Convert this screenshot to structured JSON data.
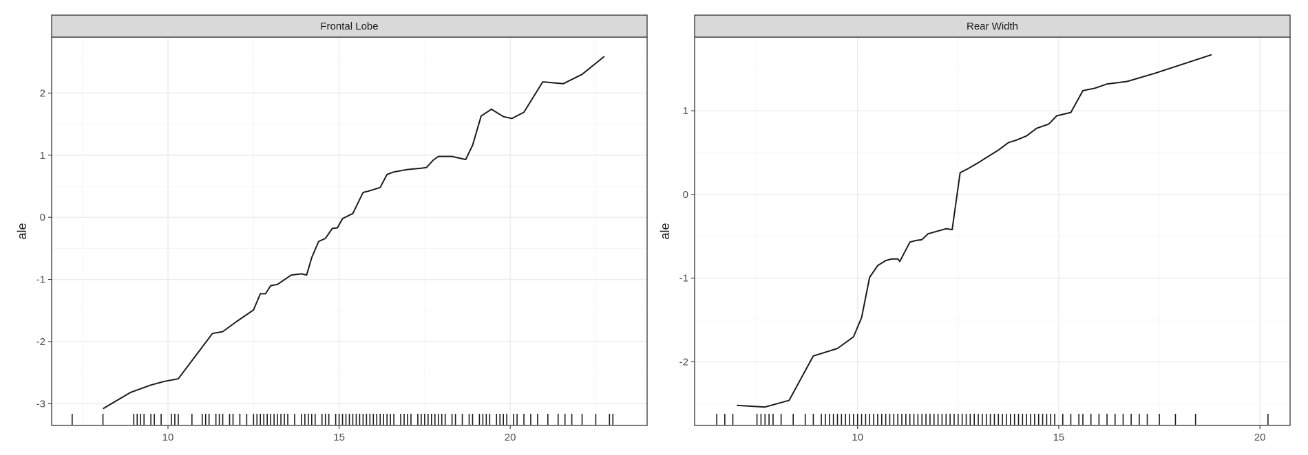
{
  "chart_data": [
    {
      "type": "line",
      "title": "Frontal Lobe",
      "xlabel": "",
      "ylabel": "ale",
      "xlim": [
        6.6,
        24.0
      ],
      "ylim": [
        -3.35,
        2.9
      ],
      "x_ticks": [
        10,
        15,
        20
      ],
      "y_ticks": [
        -3,
        -2,
        -1,
        0,
        1,
        2
      ],
      "grid": true,
      "series": [
        {
          "x": [
            8.1,
            8.9,
            9.5,
            9.9,
            10.3,
            11.3,
            11.6,
            12.0,
            12.5,
            12.7,
            12.85,
            13.0,
            13.2,
            13.6,
            13.9,
            14.05,
            14.2,
            14.4,
            14.6,
            14.8,
            14.95,
            15.1,
            15.4,
            15.7,
            15.85,
            16.2,
            16.4,
            16.6,
            17.0,
            17.4,
            17.55,
            17.75,
            17.9,
            18.3,
            18.7,
            18.9,
            19.15,
            19.45,
            19.8,
            20.05,
            20.4,
            20.95,
            21.55,
            22.1,
            22.75
          ],
          "y": [
            -3.08,
            -2.82,
            -2.7,
            -2.64,
            -2.6,
            -1.87,
            -1.84,
            -1.68,
            -1.49,
            -1.23,
            -1.23,
            -1.1,
            -1.08,
            -0.93,
            -0.91,
            -0.93,
            -0.65,
            -0.39,
            -0.34,
            -0.18,
            -0.17,
            -0.02,
            0.06,
            0.4,
            0.42,
            0.48,
            0.69,
            0.73,
            0.77,
            0.79,
            0.8,
            0.92,
            0.98,
            0.98,
            0.93,
            1.16,
            1.63,
            1.74,
            1.62,
            1.59,
            1.69,
            2.18,
            2.15,
            2.3,
            2.59
          ]
        }
      ],
      "rug": [
        7.2,
        8.1,
        9.0,
        9.1,
        9.2,
        9.3,
        9.5,
        9.6,
        9.8,
        10.1,
        10.2,
        10.3,
        10.7,
        11.0,
        11.1,
        11.2,
        11.4,
        11.5,
        11.6,
        11.8,
        11.9,
        12.1,
        12.3,
        12.5,
        12.6,
        12.7,
        12.8,
        12.9,
        13.0,
        13.1,
        13.2,
        13.3,
        13.4,
        13.5,
        13.7,
        13.9,
        14.0,
        14.1,
        14.2,
        14.3,
        14.5,
        14.6,
        14.7,
        14.9,
        15.0,
        15.1,
        15.2,
        15.3,
        15.4,
        15.5,
        15.6,
        15.7,
        15.8,
        15.9,
        16.0,
        16.1,
        16.2,
        16.3,
        16.4,
        16.5,
        16.6,
        16.8,
        16.9,
        17.0,
        17.1,
        17.3,
        17.4,
        17.5,
        17.6,
        17.7,
        17.8,
        17.9,
        18.0,
        18.1,
        18.3,
        18.4,
        18.6,
        18.8,
        18.9,
        19.1,
        19.2,
        19.3,
        19.4,
        19.6,
        19.7,
        19.8,
        19.9,
        20.1,
        20.2,
        20.4,
        20.6,
        20.8,
        21.1,
        21.4,
        21.6,
        21.8,
        22.1,
        22.5,
        22.9,
        23.0
      ]
    },
    {
      "type": "line",
      "title": "Rear Width",
      "xlabel": "",
      "ylabel": "ale",
      "xlim": [
        5.95,
        20.75
      ],
      "ylim": [
        -2.76,
        1.88
      ],
      "x_ticks": [
        10,
        15,
        20
      ],
      "y_ticks": [
        -2,
        -1,
        0,
        1
      ],
      "grid": true,
      "series": [
        {
          "x": [
            7.0,
            7.7,
            8.3,
            8.9,
            9.5,
            9.9,
            10.1,
            10.3,
            10.5,
            10.7,
            10.85,
            11.0,
            11.05,
            11.3,
            11.45,
            11.6,
            11.75,
            12.2,
            12.35,
            12.55,
            12.75,
            13.0,
            13.5,
            13.75,
            13.95,
            14.2,
            14.45,
            14.75,
            14.95,
            15.3,
            15.6,
            15.9,
            16.2,
            16.7,
            17.4,
            18.8
          ],
          "y": [
            -2.52,
            -2.54,
            -2.46,
            -1.93,
            -1.84,
            -1.7,
            -1.47,
            -0.99,
            -0.85,
            -0.79,
            -0.77,
            -0.77,
            -0.8,
            -0.57,
            -0.55,
            -0.54,
            -0.47,
            -0.41,
            -0.42,
            0.26,
            0.31,
            0.38,
            0.53,
            0.62,
            0.65,
            0.7,
            0.79,
            0.84,
            0.94,
            0.98,
            1.24,
            1.27,
            1.32,
            1.35,
            1.45,
            1.67
          ]
        }
      ],
      "rug": [
        6.5,
        6.7,
        6.9,
        7.5,
        7.6,
        7.7,
        7.8,
        7.9,
        8.1,
        8.4,
        8.7,
        8.9,
        9.1,
        9.2,
        9.3,
        9.4,
        9.5,
        9.6,
        9.7,
        9.8,
        9.9,
        10.0,
        10.1,
        10.2,
        10.3,
        10.4,
        10.5,
        10.6,
        10.7,
        10.8,
        10.9,
        11.0,
        11.1,
        11.2,
        11.3,
        11.4,
        11.5,
        11.6,
        11.7,
        11.8,
        11.9,
        12.0,
        12.1,
        12.2,
        12.3,
        12.4,
        12.5,
        12.6,
        12.7,
        12.8,
        12.9,
        13.0,
        13.1,
        13.2,
        13.3,
        13.4,
        13.5,
        13.6,
        13.7,
        13.8,
        13.9,
        14.0,
        14.1,
        14.2,
        14.3,
        14.4,
        14.5,
        14.6,
        14.7,
        14.8,
        14.9,
        15.1,
        15.3,
        15.5,
        15.6,
        15.8,
        16.0,
        16.2,
        16.4,
        16.6,
        16.8,
        17.0,
        17.2,
        17.5,
        17.9,
        18.4,
        20.2
      ]
    }
  ]
}
